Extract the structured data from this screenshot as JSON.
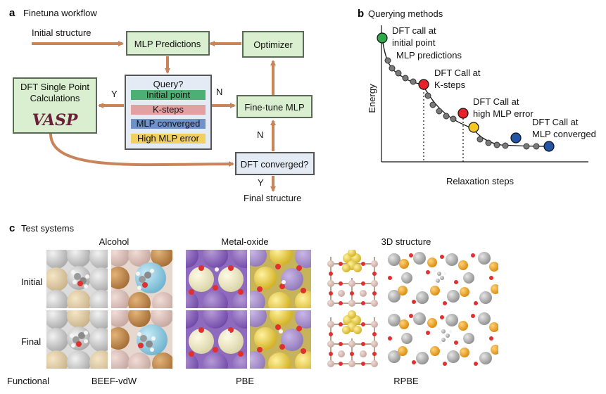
{
  "panel_a": {
    "letter": "a",
    "title": "Finetuna workflow",
    "initial_structure": "Initial structure",
    "mlp_predictions": "MLP Predictions",
    "optimizer": "Optimizer",
    "query": "Query?",
    "query_options": [
      "Initial point",
      "K-steps",
      "MLP converged",
      "High MLP error"
    ],
    "query_colors": [
      "#4caf73",
      "#e3a0a0",
      "#6f93c9",
      "#f2d060"
    ],
    "dft_single_point_line1": "DFT Single Point",
    "dft_single_point_line2": "Calculations",
    "vasp_logo": "VASP",
    "fine_tune": "Fine-tune MLP",
    "dft_converged": "DFT converged?",
    "final_structure": "Final structure",
    "y_left": "Y",
    "n_right": "N",
    "n_up": "N",
    "y_down": "Y"
  },
  "panel_b": {
    "letter": "b",
    "title": "Querying methods",
    "ylabel": "Energy",
    "xlabel": "Relaxation steps",
    "labels": [
      {
        "line1": "DFT call at",
        "line2": "initial point",
        "color": "#2e7d32"
      },
      {
        "line1": "MLP predictions",
        "line2": "",
        "color": "#7a7a7a"
      },
      {
        "line1": "DFT Call at",
        "line2": "K-steps",
        "color": "#c0392b"
      },
      {
        "line1": "DFT Call at",
        "line2": "high MLP error",
        "color": "#c9a227"
      },
      {
        "line1": "DFT Call at",
        "line2": "MLP converged",
        "color": "#2f5c9c"
      }
    ]
  },
  "panel_c": {
    "letter": "c",
    "title": "Test systems",
    "groups": [
      "Alcohol",
      "Metal-oxide",
      "3D structure"
    ],
    "rows": [
      "Initial",
      "Final"
    ],
    "functional_label": "Functional",
    "functionals": [
      "BEEF-vdW",
      "PBE",
      "RPBE"
    ]
  },
  "colors": {
    "box_fill": "#d9efcf",
    "box_stroke": "#5a6b55",
    "arrow": "#c9845a",
    "query_fill": "#e4ebf5"
  }
}
